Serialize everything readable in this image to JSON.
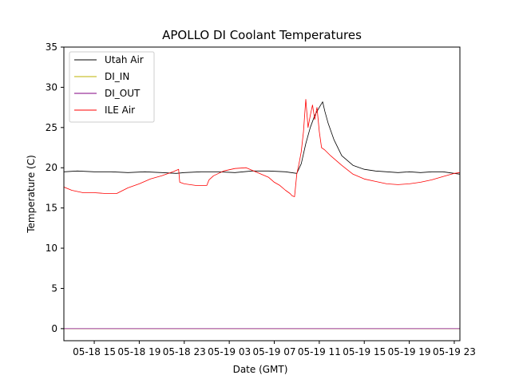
{
  "chart_data": {
    "type": "line",
    "title": "APOLLO DI Coolant Temperatures",
    "xlabel": "Date (GMT)",
    "ylabel": "Temperature (C)",
    "xlim_hours": [
      12.3,
      47.5
    ],
    "ylim": [
      -1.5,
      35
    ],
    "grid": false,
    "legend_position": "top-left",
    "x_ticks": [
      {
        "hour": 15,
        "label": "05-18 15"
      },
      {
        "hour": 19,
        "label": "05-18 19"
      },
      {
        "hour": 23,
        "label": "05-18 23"
      },
      {
        "hour": 27,
        "label": "05-19 03"
      },
      {
        "hour": 31,
        "label": "05-19 07"
      },
      {
        "hour": 35,
        "label": "05-19 11"
      },
      {
        "hour": 39,
        "label": "05-19 15"
      },
      {
        "hour": 43,
        "label": "05-19 19"
      },
      {
        "hour": 47,
        "label": "05-19 23"
      }
    ],
    "y_ticks": [
      0,
      5,
      10,
      15,
      20,
      25,
      30,
      35
    ],
    "series": [
      {
        "name": "Utah Air",
        "color": "#000000",
        "x": [
          12.3,
          13.5,
          15.0,
          16.5,
          18.0,
          19.5,
          21.0,
          22.3,
          23.0,
          24.5,
          26.0,
          27.5,
          29.0,
          30.5,
          32.0,
          33.0,
          33.4,
          33.8,
          34.2,
          34.6,
          35.0,
          35.3,
          35.5,
          35.8,
          36.3,
          37.0,
          38.0,
          39.0,
          40.0,
          41.0,
          42.0,
          43.0,
          44.0,
          45.0,
          46.0,
          47.0,
          47.5
        ],
        "y": [
          19.5,
          19.6,
          19.5,
          19.5,
          19.4,
          19.5,
          19.4,
          19.3,
          19.4,
          19.5,
          19.5,
          19.4,
          19.6,
          19.6,
          19.5,
          19.3,
          20.5,
          23.0,
          25.0,
          26.5,
          27.5,
          28.2,
          27.0,
          25.5,
          23.5,
          21.5,
          20.3,
          19.8,
          19.6,
          19.5,
          19.4,
          19.5,
          19.4,
          19.5,
          19.5,
          19.3,
          19.2
        ]
      },
      {
        "name": "DI_IN",
        "color": "#bcb300",
        "x": [
          12.3,
          47.5
        ],
        "y": [
          0.0,
          0.0
        ]
      },
      {
        "name": "DI_OUT",
        "color": "#800080",
        "x": [
          12.3,
          47.5
        ],
        "y": [
          0.0,
          0.0
        ]
      },
      {
        "name": "ILE Air",
        "color": "#ff0000",
        "x": [
          12.3,
          13.0,
          14.0,
          15.0,
          16.0,
          17.0,
          18.0,
          19.0,
          20.0,
          21.0,
          22.0,
          22.5,
          22.6,
          23.0,
          24.0,
          25.0,
          25.2,
          25.6,
          26.5,
          27.5,
          28.5,
          29.5,
          30.5,
          31.0,
          31.5,
          32.0,
          32.4,
          32.6,
          32.8,
          33.0,
          33.2,
          33.4,
          33.6,
          33.8,
          34.0,
          34.2,
          34.4,
          34.6,
          34.8,
          35.0,
          35.2,
          35.5,
          36.0,
          37.0,
          38.0,
          39.0,
          40.0,
          41.0,
          42.0,
          43.0,
          44.0,
          45.0,
          46.0,
          47.0,
          47.5
        ],
        "y": [
          17.6,
          17.2,
          16.9,
          16.9,
          16.8,
          16.8,
          17.5,
          18.0,
          18.6,
          19.0,
          19.5,
          19.8,
          18.2,
          18.0,
          17.8,
          17.8,
          18.5,
          19.0,
          19.6,
          19.9,
          20.0,
          19.4,
          18.8,
          18.2,
          17.8,
          17.2,
          16.8,
          16.5,
          16.4,
          19.2,
          20.5,
          22.0,
          24.5,
          28.5,
          25.0,
          26.5,
          27.8,
          26.0,
          27.5,
          24.5,
          22.5,
          22.2,
          21.5,
          20.3,
          19.2,
          18.6,
          18.3,
          18.0,
          17.9,
          18.0,
          18.2,
          18.5,
          18.9,
          19.3,
          19.4
        ]
      }
    ]
  }
}
